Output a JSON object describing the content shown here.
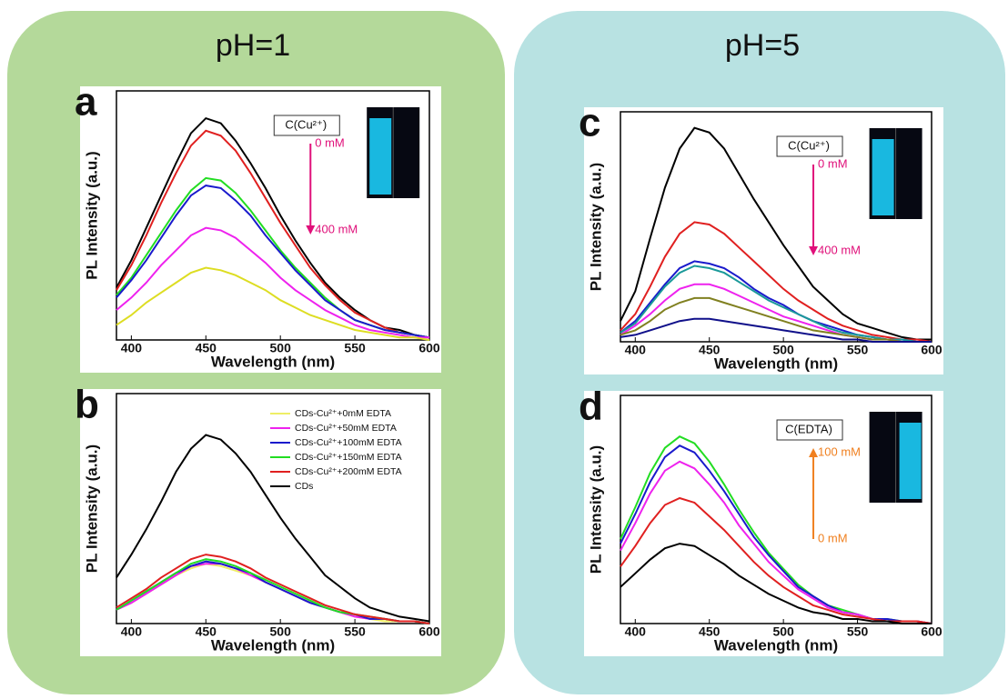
{
  "groups": [
    "pH=1",
    "pH=5"
  ],
  "chart_data": [
    {
      "type": "line",
      "label": "a",
      "xlabel": "Wavelength (nm)",
      "ylabel": "PL Intensity (a.u.)",
      "x": [
        390,
        400,
        410,
        420,
        430,
        440,
        450,
        460,
        470,
        480,
        490,
        500,
        510,
        520,
        530,
        540,
        550,
        560,
        570,
        580,
        590,
        600
      ],
      "xlim": [
        390,
        600
      ],
      "xticks": [
        400,
        450,
        500,
        550,
        600
      ],
      "ylim": [
        0,
        1
      ],
      "annotation": {
        "box": "C(Cu²⁺)",
        "from": "0 mM",
        "to": "400 mM",
        "color": "#e0107a",
        "direction": "down"
      },
      "series": [
        {
          "color": "#000000",
          "values": [
            0.21,
            0.32,
            0.45,
            0.58,
            0.71,
            0.83,
            0.89,
            0.87,
            0.8,
            0.71,
            0.61,
            0.5,
            0.4,
            0.31,
            0.23,
            0.17,
            0.12,
            0.08,
            0.05,
            0.04,
            0.02,
            0.01
          ]
        },
        {
          "color": "#e02020",
          "values": [
            0.2,
            0.3,
            0.42,
            0.55,
            0.67,
            0.78,
            0.84,
            0.82,
            0.76,
            0.67,
            0.57,
            0.47,
            0.38,
            0.29,
            0.22,
            0.16,
            0.11,
            0.08,
            0.05,
            0.03,
            0.02,
            0.01
          ]
        },
        {
          "color": "#22dd22",
          "values": [
            0.18,
            0.25,
            0.34,
            0.43,
            0.52,
            0.6,
            0.65,
            0.64,
            0.59,
            0.52,
            0.44,
            0.36,
            0.29,
            0.23,
            0.17,
            0.12,
            0.08,
            0.06,
            0.04,
            0.03,
            0.02,
            0.01
          ]
        },
        {
          "color": "#1a1acc",
          "values": [
            0.17,
            0.24,
            0.32,
            0.41,
            0.5,
            0.58,
            0.62,
            0.61,
            0.56,
            0.5,
            0.42,
            0.35,
            0.28,
            0.22,
            0.16,
            0.12,
            0.08,
            0.06,
            0.04,
            0.03,
            0.02,
            0.01
          ]
        },
        {
          "color": "#ee22ee",
          "values": [
            0.12,
            0.17,
            0.23,
            0.3,
            0.36,
            0.42,
            0.45,
            0.44,
            0.41,
            0.36,
            0.31,
            0.25,
            0.2,
            0.16,
            0.12,
            0.09,
            0.06,
            0.04,
            0.03,
            0.02,
            0.01,
            0.01
          ]
        },
        {
          "color": "#dddd22",
          "values": [
            0.06,
            0.1,
            0.15,
            0.19,
            0.23,
            0.27,
            0.29,
            0.28,
            0.26,
            0.23,
            0.2,
            0.16,
            0.13,
            0.1,
            0.08,
            0.06,
            0.04,
            0.03,
            0.02,
            0.01,
            0.01,
            0
          ]
        }
      ]
    },
    {
      "type": "line",
      "label": "b",
      "xlabel": "Wavelength (nm)",
      "ylabel": "PL Intensity (a.u.)",
      "x": [
        390,
        400,
        410,
        420,
        430,
        440,
        450,
        460,
        470,
        480,
        490,
        500,
        510,
        520,
        530,
        540,
        550,
        560,
        570,
        580,
        590,
        600
      ],
      "xlim": [
        390,
        600
      ],
      "xticks": [
        400,
        450,
        500,
        550,
        600
      ],
      "ylim": [
        0,
        1
      ],
      "legend": "upper right",
      "series": [
        {
          "name": "CDs-Cu²⁺+0mM EDTA",
          "color": "#eeee66",
          "values": [
            0.06,
            0.09,
            0.13,
            0.17,
            0.21,
            0.24,
            0.26,
            0.25,
            0.23,
            0.21,
            0.18,
            0.15,
            0.12,
            0.09,
            0.07,
            0.05,
            0.03,
            0.02,
            0.01,
            0.01,
            0.01,
            0
          ]
        },
        {
          "name": "CDs-Cu²⁺+50mM EDTA",
          "color": "#ee22ee",
          "values": [
            0.06,
            0.09,
            0.13,
            0.17,
            0.21,
            0.25,
            0.26,
            0.26,
            0.24,
            0.21,
            0.18,
            0.15,
            0.12,
            0.09,
            0.07,
            0.05,
            0.03,
            0.02,
            0.02,
            0.01,
            0.01,
            0
          ]
        },
        {
          "name": "CDs-Cu²⁺+100mM EDTA",
          "color": "#1a1acc",
          "values": [
            0.06,
            0.1,
            0.14,
            0.18,
            0.22,
            0.25,
            0.27,
            0.26,
            0.24,
            0.22,
            0.18,
            0.15,
            0.12,
            0.09,
            0.07,
            0.05,
            0.04,
            0.02,
            0.02,
            0.01,
            0.01,
            0
          ]
        },
        {
          "name": "CDs-Cu²⁺+150mM EDTA",
          "color": "#22dd22",
          "values": [
            0.06,
            0.1,
            0.14,
            0.18,
            0.22,
            0.26,
            0.28,
            0.27,
            0.25,
            0.22,
            0.19,
            0.16,
            0.13,
            0.1,
            0.07,
            0.05,
            0.04,
            0.03,
            0.02,
            0.01,
            0.01,
            0
          ]
        },
        {
          "name": "CDs-Cu²⁺+200mM EDTA",
          "color": "#e02020",
          "values": [
            0.07,
            0.11,
            0.15,
            0.2,
            0.24,
            0.28,
            0.3,
            0.29,
            0.27,
            0.24,
            0.2,
            0.17,
            0.14,
            0.11,
            0.08,
            0.06,
            0.04,
            0.03,
            0.02,
            0.01,
            0.01,
            0
          ]
        },
        {
          "name": "CDs",
          "color": "#000000",
          "values": [
            0.2,
            0.3,
            0.41,
            0.53,
            0.66,
            0.76,
            0.82,
            0.8,
            0.74,
            0.66,
            0.56,
            0.46,
            0.37,
            0.29,
            0.21,
            0.16,
            0.11,
            0.07,
            0.05,
            0.03,
            0.02,
            0.01
          ]
        }
      ]
    },
    {
      "type": "line",
      "label": "c",
      "xlabel": "Wavelength (nm)",
      "ylabel": "PL Intensity (a.u.)",
      "x": [
        390,
        400,
        410,
        420,
        430,
        440,
        450,
        460,
        470,
        480,
        490,
        500,
        510,
        520,
        530,
        540,
        550,
        560,
        570,
        580,
        590,
        600
      ],
      "xlim": [
        390,
        600
      ],
      "xticks": [
        400,
        450,
        500,
        550,
        600
      ],
      "ylim": [
        0,
        1
      ],
      "annotation": {
        "box": "C(Cu²⁺)",
        "from": "0 mM",
        "to": "400 mM",
        "color": "#e0107a",
        "direction": "down"
      },
      "series": [
        {
          "color": "#000000",
          "values": [
            0.09,
            0.22,
            0.45,
            0.67,
            0.84,
            0.93,
            0.91,
            0.84,
            0.73,
            0.62,
            0.52,
            0.42,
            0.33,
            0.24,
            0.18,
            0.12,
            0.08,
            0.06,
            0.04,
            0.02,
            0.01,
            0.01
          ]
        },
        {
          "color": "#e02020",
          "values": [
            0.05,
            0.12,
            0.24,
            0.37,
            0.47,
            0.52,
            0.51,
            0.47,
            0.41,
            0.35,
            0.29,
            0.23,
            0.18,
            0.14,
            0.1,
            0.07,
            0.05,
            0.03,
            0.02,
            0.01,
            0.01,
            0
          ]
        },
        {
          "color": "#1a1acc",
          "values": [
            0.04,
            0.09,
            0.17,
            0.25,
            0.32,
            0.35,
            0.34,
            0.32,
            0.28,
            0.23,
            0.19,
            0.16,
            0.12,
            0.09,
            0.07,
            0.05,
            0.03,
            0.02,
            0.01,
            0.01,
            0,
            0
          ]
        },
        {
          "color": "#1a9999",
          "values": [
            0.04,
            0.08,
            0.16,
            0.24,
            0.3,
            0.33,
            0.32,
            0.3,
            0.26,
            0.22,
            0.18,
            0.15,
            0.12,
            0.09,
            0.06,
            0.04,
            0.03,
            0.02,
            0.01,
            0.01,
            0,
            0
          ]
        },
        {
          "color": "#ee22ee",
          "values": [
            0.03,
            0.07,
            0.12,
            0.18,
            0.23,
            0.25,
            0.25,
            0.23,
            0.2,
            0.17,
            0.14,
            0.11,
            0.09,
            0.07,
            0.05,
            0.03,
            0.02,
            0.01,
            0.01,
            0,
            0,
            0
          ]
        },
        {
          "color": "#808020",
          "values": [
            0.03,
            0.05,
            0.09,
            0.14,
            0.17,
            0.19,
            0.19,
            0.17,
            0.15,
            0.13,
            0.11,
            0.09,
            0.07,
            0.05,
            0.04,
            0.03,
            0.02,
            0.01,
            0.01,
            0,
            0,
            0
          ]
        },
        {
          "color": "#10108a",
          "values": [
            0.02,
            0.03,
            0.05,
            0.07,
            0.09,
            0.1,
            0.1,
            0.09,
            0.08,
            0.07,
            0.06,
            0.05,
            0.04,
            0.03,
            0.02,
            0.01,
            0.01,
            0,
            0,
            0,
            0,
            0
          ]
        }
      ]
    },
    {
      "type": "line",
      "label": "d",
      "xlabel": "Wavelength (nm)",
      "ylabel": "PL Intensity (a.u.)",
      "x": [
        390,
        400,
        410,
        420,
        430,
        440,
        450,
        460,
        470,
        480,
        490,
        500,
        510,
        520,
        530,
        540,
        550,
        560,
        570,
        580,
        590,
        600
      ],
      "xlim": [
        390,
        600
      ],
      "xticks": [
        400,
        450,
        500,
        550,
        600
      ],
      "ylim": [
        0,
        1
      ],
      "annotation": {
        "box": "C(EDTA)",
        "from": "0 mM",
        "to": "100 mM",
        "color": "#f08020",
        "direction": "up"
      },
      "series": [
        {
          "color": "#22dd22",
          "values": [
            0.37,
            0.51,
            0.66,
            0.77,
            0.82,
            0.79,
            0.71,
            0.61,
            0.5,
            0.4,
            0.31,
            0.24,
            0.17,
            0.12,
            0.08,
            0.06,
            0.04,
            0.02,
            0.02,
            0.01,
            0.01,
            0
          ]
        },
        {
          "color": "#1a1acc",
          "values": [
            0.35,
            0.48,
            0.62,
            0.73,
            0.78,
            0.75,
            0.67,
            0.58,
            0.48,
            0.38,
            0.3,
            0.23,
            0.16,
            0.12,
            0.08,
            0.05,
            0.04,
            0.02,
            0.02,
            0.01,
            0.01,
            0
          ]
        },
        {
          "color": "#ee22ee",
          "values": [
            0.32,
            0.44,
            0.57,
            0.67,
            0.71,
            0.68,
            0.61,
            0.53,
            0.43,
            0.35,
            0.27,
            0.21,
            0.15,
            0.11,
            0.07,
            0.05,
            0.04,
            0.02,
            0.01,
            0.01,
            0.01,
            0
          ]
        },
        {
          "color": "#e02020",
          "values": [
            0.25,
            0.34,
            0.44,
            0.52,
            0.55,
            0.53,
            0.47,
            0.41,
            0.34,
            0.27,
            0.21,
            0.16,
            0.12,
            0.08,
            0.06,
            0.04,
            0.03,
            0.02,
            0.01,
            0.01,
            0.01,
            0
          ]
        },
        {
          "color": "#000000",
          "values": [
            0.16,
            0.22,
            0.28,
            0.33,
            0.35,
            0.34,
            0.3,
            0.26,
            0.21,
            0.17,
            0.13,
            0.1,
            0.07,
            0.05,
            0.04,
            0.02,
            0.02,
            0.01,
            0.01,
            0,
            0,
            0
          ]
        }
      ]
    }
  ]
}
